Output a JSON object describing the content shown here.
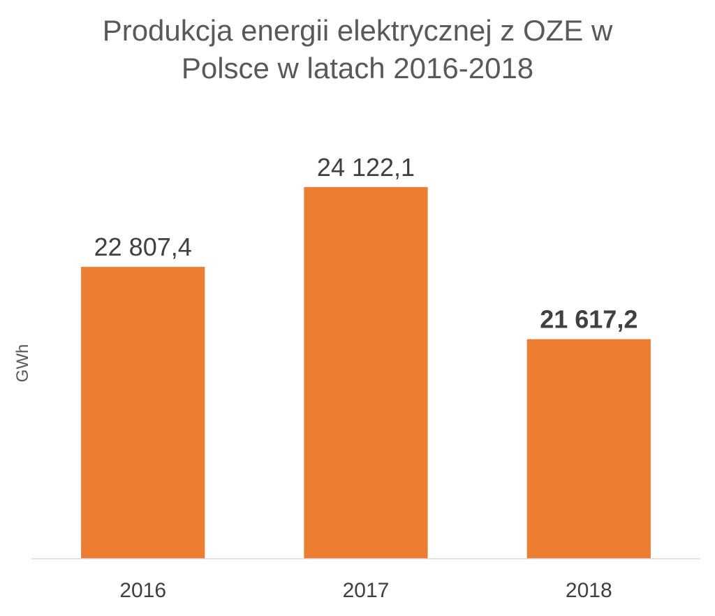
{
  "chart_data": {
    "type": "bar",
    "title_lines": [
      "Produkcja energii elektrycznej z OZE w",
      "Polsce w latach 2016-2018"
    ],
    "xlabel": "",
    "ylabel": "GWh",
    "categories": [
      "2016",
      "2017",
      "2018"
    ],
    "values": [
      22807.4,
      24122.1,
      21617.2
    ],
    "value_labels": [
      "22 807,4",
      "24 122,1",
      "21 617,2"
    ],
    "bold_labels": [
      false,
      false,
      true
    ],
    "ylim": [
      18000,
      24500
    ],
    "grid": false,
    "legend": "none",
    "bar_color": "#ED7D31",
    "axis_color": "#D9D9D9"
  }
}
